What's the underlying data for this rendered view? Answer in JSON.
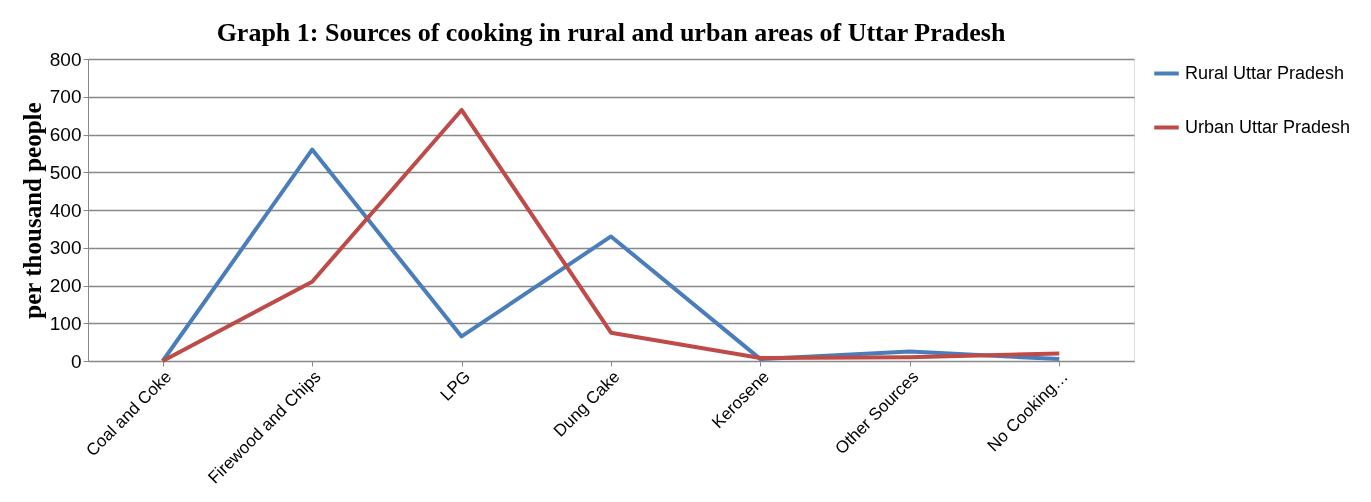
{
  "chart_data": {
    "type": "line",
    "title": "Graph 1: Sources of cooking in rural and urban areas of Uttar Pradesh",
    "ylabel": "per thousand people",
    "categories": [
      "Coal and Coke",
      "Firewood and Chips",
      "LPG",
      "Dung Cake",
      "Kerosene",
      "Other Sources",
      "No Cooking…"
    ],
    "series": [
      {
        "name": "Rural Uttar Pradesh",
        "color": "#4a7ebb",
        "values": [
          0,
          560,
          65,
          330,
          5,
          25,
          5
        ]
      },
      {
        "name": "Urban Uttar Pradesh",
        "color": "#be4b48",
        "values": [
          0,
          210,
          665,
          75,
          8,
          10,
          20
        ]
      }
    ],
    "ylim": [
      0,
      800
    ],
    "yticks": [
      0,
      100,
      200,
      300,
      400,
      500,
      600,
      700,
      800
    ],
    "grid": "y",
    "legend": "right",
    "marker": "none",
    "line_style": "solid"
  }
}
